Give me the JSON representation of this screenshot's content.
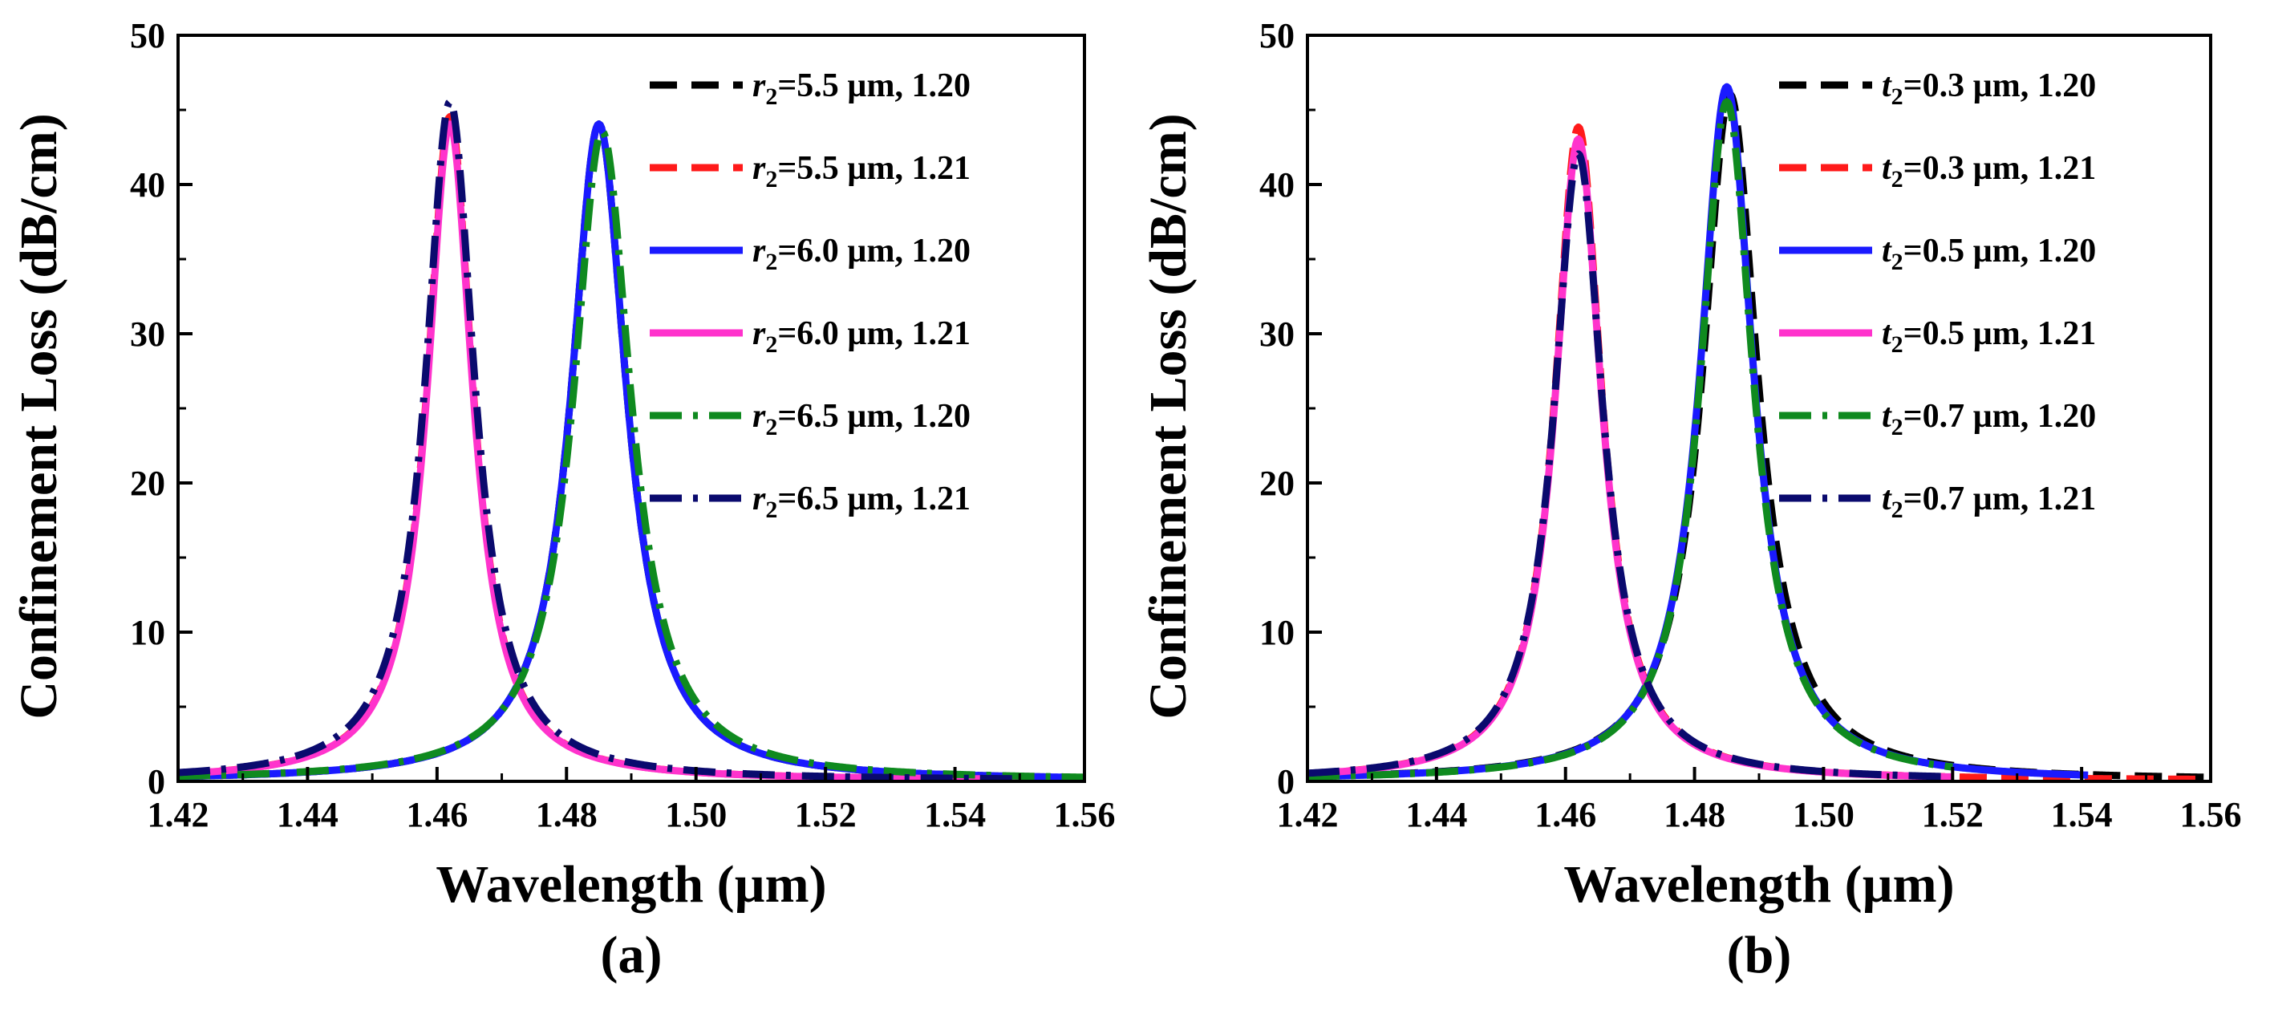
{
  "chart_data": [
    {
      "type": "line",
      "panel_label": "(a)",
      "xlabel": "Wavelength (µm)",
      "ylabel": "Confinement Loss (dB/cm)",
      "xlim": [
        1.42,
        1.56
      ],
      "ylim": [
        0,
        50
      ],
      "xticks": [
        1.42,
        1.44,
        1.46,
        1.48,
        1.5,
        1.52,
        1.54,
        1.56
      ],
      "xtick_labels": [
        "1.42",
        "1.44",
        "1.46",
        "1.48",
        "1.50",
        "1.52",
        "1.54",
        "1.56"
      ],
      "yticks": [
        0,
        10,
        20,
        30,
        40,
        50
      ],
      "ytick_labels": [
        "0",
        "10",
        "20",
        "30",
        "40",
        "50"
      ],
      "legend_position": "top-right",
      "series": [
        {
          "name": "r2=5.5 µm, 1.20",
          "var": "r",
          "sub": "2",
          "rest": "=5.5 µm, 1.20",
          "color": "#000000",
          "style": "dash",
          "peak_x": 1.485,
          "peak_y": 44.0,
          "gamma": 0.0052,
          "x_start": 1.42,
          "x_end": 1.56
        },
        {
          "name": "r2=5.5 µm, 1.21",
          "var": "r",
          "sub": "2",
          "rest": "=5.5 µm, 1.21",
          "color": "#ff1a1a",
          "style": "dash",
          "peak_x": 1.462,
          "peak_y": 44.5,
          "gamma": 0.0043,
          "x_start": 1.42,
          "x_end": 1.55
        },
        {
          "name": "r2=6.0 µm, 1.20",
          "var": "r",
          "sub": "2",
          "rest": "=6.0 µm, 1.20",
          "color": "#1a1aff",
          "style": "solid",
          "peak_x": 1.485,
          "peak_y": 44.0,
          "gamma": 0.0052,
          "x_start": 1.42,
          "x_end": 1.56
        },
        {
          "name": "r2=6.0 µm, 1.21",
          "var": "r",
          "sub": "2",
          "rest": "=6.0 µm, 1.21",
          "color": "#ff33cc",
          "style": "solid",
          "peak_x": 1.462,
          "peak_y": 44.0,
          "gamma": 0.0043,
          "x_start": 1.42,
          "x_end": 1.55
        },
        {
          "name": "r2=6.5 µm, 1.20",
          "var": "r",
          "sub": "2",
          "rest": "=6.5 µm, 1.20",
          "color": "#0f8a1f",
          "style": "dashdot",
          "peak_x": 1.4855,
          "peak_y": 43.5,
          "gamma": 0.0054,
          "x_start": 1.42,
          "x_end": 1.56
        },
        {
          "name": "r2=6.5 µm, 1.21",
          "var": "r",
          "sub": "2",
          "rest": "=6.5 µm, 1.21",
          "color": "#0a0a6e",
          "style": "dashdot",
          "peak_x": 1.462,
          "peak_y": 45.5,
          "gamma": 0.0046,
          "x_start": 1.42,
          "x_end": 1.55
        }
      ]
    },
    {
      "type": "line",
      "panel_label": "(b)",
      "xlabel": "Wavelength (µm)",
      "ylabel": "Confinement Loss (dB/cm)",
      "xlim": [
        1.42,
        1.56
      ],
      "ylim": [
        0,
        50
      ],
      "xticks": [
        1.42,
        1.44,
        1.46,
        1.48,
        1.5,
        1.52,
        1.54,
        1.56
      ],
      "xtick_labels": [
        "1.42",
        "1.44",
        "1.46",
        "1.48",
        "1.50",
        "1.52",
        "1.54",
        "1.56"
      ],
      "yticks": [
        0,
        10,
        20,
        30,
        40,
        50
      ],
      "ytick_labels": [
        "0",
        "10",
        "20",
        "30",
        "40",
        "50"
      ],
      "legend_position": "top-right",
      "series": [
        {
          "name": "t2=0.3 µm, 1.20",
          "var": "t",
          "sub": "2",
          "rest": "=0.3 µm, 1.20",
          "color": "#000000",
          "style": "dash",
          "peak_x": 1.4855,
          "peak_y": 46.0,
          "gamma": 0.0052,
          "x_start": 1.42,
          "x_end": 1.56
        },
        {
          "name": "t2=0.3 µm, 1.21",
          "var": "t",
          "sub": "2",
          "rest": "=0.3 µm, 1.21",
          "color": "#ff1a1a",
          "style": "dash",
          "peak_x": 1.462,
          "peak_y": 43.8,
          "gamma": 0.0044,
          "x_start": 1.42,
          "x_end": 1.56
        },
        {
          "name": "t2=0.5 µm, 1.20",
          "var": "t",
          "sub": "2",
          "rest": "=0.5 µm, 1.20",
          "color": "#1a1aff",
          "style": "solid",
          "peak_x": 1.485,
          "peak_y": 46.5,
          "gamma": 0.005,
          "x_start": 1.42,
          "x_end": 1.541
        },
        {
          "name": "t2=0.5 µm, 1.21",
          "var": "t",
          "sub": "2",
          "rest": "=0.5 µm, 1.21",
          "color": "#ff33cc",
          "style": "solid",
          "peak_x": 1.462,
          "peak_y": 43.0,
          "gamma": 0.0044,
          "x_start": 1.42,
          "x_end": 1.52
        },
        {
          "name": "t2=0.7 µm, 1.20",
          "var": "t",
          "sub": "2",
          "rest": "=0.7 µm, 1.20",
          "color": "#0f8a1f",
          "style": "dashdot",
          "peak_x": 1.485,
          "peak_y": 45.5,
          "gamma": 0.005,
          "x_start": 1.42,
          "x_end": 1.52
        },
        {
          "name": "t2=0.7 µm, 1.21",
          "var": "t",
          "sub": "2",
          "rest": "=0.7 µm, 1.21",
          "color": "#0a0a6e",
          "style": "dashdot",
          "peak_x": 1.462,
          "peak_y": 42.0,
          "gamma": 0.0046,
          "x_start": 1.42,
          "x_end": 1.52
        }
      ]
    }
  ]
}
